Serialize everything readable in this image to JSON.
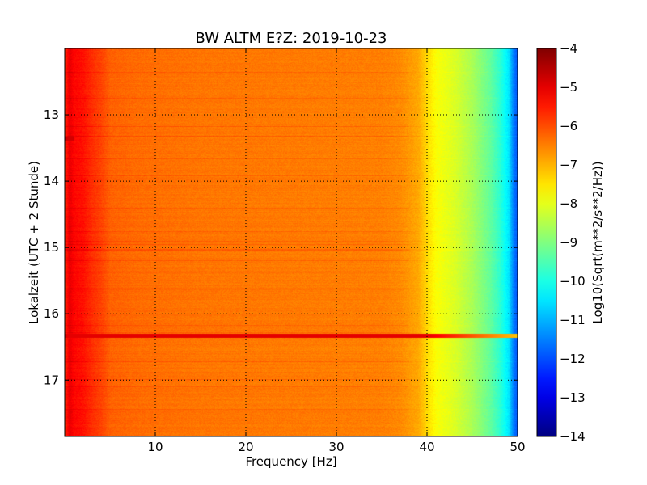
{
  "chart_data": {
    "type": "heatmap",
    "title": "BW ALTM E?Z: 2019-10-23",
    "xlabel": "Frequency [Hz]",
    "ylabel": "Lokalzeit (UTC + 2 Stunde)",
    "colorbar_label": "Log10(Sqrt(m**2/s**2/Hz))",
    "colormap": "jet",
    "xlim": [
      0,
      50
    ],
    "ylim": [
      17.85,
      12.0
    ],
    "y_inverted": true,
    "clim": [
      -14,
      -4
    ],
    "grid": true,
    "x_ticks": [
      10,
      20,
      30,
      40,
      50
    ],
    "x_tick_labels": [
      "10",
      "20",
      "30",
      "40",
      "50"
    ],
    "y_ticks": [
      13,
      14,
      15,
      16,
      17
    ],
    "y_tick_labels": [
      "13",
      "14",
      "15",
      "16",
      "17"
    ],
    "colorbar_ticks": [
      -4,
      -5,
      -6,
      -7,
      -8,
      -9,
      -10,
      -11,
      -12,
      -13,
      -14
    ],
    "colorbar_tick_labels": [
      "−4",
      "−5",
      "−6",
      "−7",
      "−8",
      "−9",
      "−10",
      "−11",
      "−12",
      "−13",
      "−14"
    ],
    "spectrum_profile": {
      "frequency_hz": [
        0,
        0.5,
        1,
        2,
        3,
        4,
        5,
        8,
        15,
        25,
        35,
        37,
        39,
        40,
        41,
        43,
        45,
        47,
        48,
        49,
        49.5,
        50
      ],
      "log_amplitude": [
        -5.7,
        -5.0,
        -5.3,
        -5.4,
        -5.7,
        -5.9,
        -6.2,
        -6.3,
        -6.4,
        -6.45,
        -6.5,
        -6.6,
        -6.9,
        -7.4,
        -7.8,
        -8.1,
        -8.6,
        -9.3,
        -9.8,
        -10.5,
        -11.5,
        -12.0
      ]
    },
    "events": [
      {
        "time": 16.33,
        "freq_range": [
          0,
          50
        ],
        "log_amplitude": -5.0,
        "label": ""
      },
      {
        "time": 13.35,
        "freq_range": [
          0,
          1
        ],
        "log_amplitude": -4.8,
        "label": ""
      }
    ]
  }
}
